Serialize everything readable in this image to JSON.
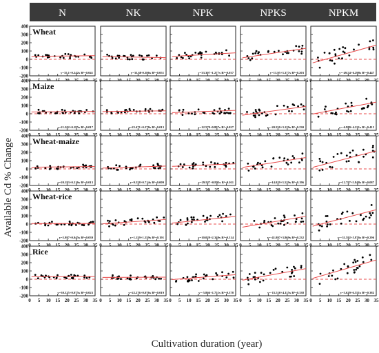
{
  "chart_data": {
    "type": "scatter",
    "ylabel": "Available Cd % Change",
    "xlabel": "Cultivation duration (year)",
    "columns": [
      "N",
      "NK",
      "NPK",
      "NPKS",
      "NPKM"
    ],
    "rows": [
      "Wheat",
      "Maize",
      "Wheat-maize",
      "Wheat-rice",
      "Rice"
    ],
    "xlim": [
      0,
      35
    ],
    "xticks": [
      0,
      5,
      10,
      15,
      20,
      25,
      30,
      35
    ],
    "ylim": [
      -200,
      400
    ],
    "yticks": [
      -200,
      -100,
      0,
      100,
      200,
      300,
      400
    ],
    "zero_line": "dashed, red",
    "colors": {
      "points": "#000000",
      "fit": "#e84a4a",
      "header_bg": "#3a3a3a",
      "header_text": "#ffffff"
    },
    "panels": [
      {
        "row": "Wheat",
        "column": "N",
        "equation": "y=35.1+0.242x R²=0.041",
        "intercept": 35.1,
        "slope": 0.242
      },
      {
        "row": "Wheat",
        "column": "NK",
        "equation": "y=33.68-0.386x R²=0.051",
        "intercept": 33.68,
        "slope": -0.386
      },
      {
        "row": "Wheat",
        "column": "NPK",
        "equation": "y=33.307+1.277x R²=0.037",
        "intercept": 33.307,
        "slope": 1.277
      },
      {
        "row": "Wheat",
        "column": "NPKS",
        "equation": "y=13.95+3.377x R²=0.203",
        "intercept": 13.95,
        "slope": 3.377
      },
      {
        "row": "Wheat",
        "column": "NPKM",
        "equation": "y=-49.54+6.298x R²=0.447",
        "intercept": -49.54,
        "slope": 6.298
      },
      {
        "row": "Maize",
        "column": "N",
        "equation": "y=21.202+0.185x R²=0.017",
        "intercept": 21.202,
        "slope": 0.185
      },
      {
        "row": "Maize",
        "column": "NK",
        "equation": "y=25.471+0.278x R²=0.013",
        "intercept": 25.471,
        "slope": 0.278
      },
      {
        "row": "Maize",
        "column": "NPK",
        "equation": "y=12.570+0.807x R²=0.027",
        "intercept": 12.57,
        "slope": 0.807
      },
      {
        "row": "Maize",
        "column": "NPKS",
        "equation": "y=-20.550+3.129x R²=0.230",
        "intercept": -20.55,
        "slope": 3.129
      },
      {
        "row": "Maize",
        "column": "NPKM",
        "equation": "y=-6.980+4.221x R²=0.415",
        "intercept": -6.98,
        "slope": 4.221
      },
      {
        "row": "Wheat-maize",
        "column": "N",
        "equation": "y=20.193+0.216x R²=0.013",
        "intercept": 20.193,
        "slope": 0.216
      },
      {
        "row": "Wheat-maize",
        "column": "NK",
        "equation": "y=9.558+0.714x R²=0.009",
        "intercept": 9.558,
        "slope": 0.714
      },
      {
        "row": "Wheat-maize",
        "column": "NPK",
        "equation": "y=29.927+0.895x R²=0.011",
        "intercept": 29.927,
        "slope": 0.895
      },
      {
        "row": "Wheat-maize",
        "column": "NPKS",
        "equation": "y=14.029+3.529x R²=0.196",
        "intercept": 14.029,
        "slope": 3.529
      },
      {
        "row": "Wheat-maize",
        "column": "NPKM",
        "equation": "y=12.797+5.848x R²=0.087",
        "intercept": 12.797,
        "slope": 5.848
      },
      {
        "row": "Wheat-rice",
        "column": "N",
        "equation": "y=5.997+0.045x R²=0.039",
        "intercept": 5.997,
        "slope": 0.045
      },
      {
        "row": "Wheat-rice",
        "column": "NK",
        "equation": "y=1.159+1.559x R²=0.191",
        "intercept": 1.159,
        "slope": 1.559
      },
      {
        "row": "Wheat-rice",
        "column": "NPK",
        "equation": "y=10.029+2.349x R²=0.314",
        "intercept": 10.029,
        "slope": 2.349
      },
      {
        "row": "Wheat-rice",
        "column": "NPKS",
        "equation": "y=-41.097+3.869x R²=0.232",
        "intercept": -41.097,
        "slope": 3.869
      },
      {
        "row": "Wheat-rice",
        "column": "NPKM",
        "equation": "y=-31.592+5.876x R²=0.296",
        "intercept": -31.592,
        "slope": 5.876
      },
      {
        "row": "Rice",
        "column": "N",
        "equation": "y=30.325+0.075x R²=0.023",
        "intercept": 30.325,
        "slope": 0.075
      },
      {
        "row": "Rice",
        "column": "NK",
        "equation": "y=22.276+0.076x R²=0.019",
        "intercept": 22.276,
        "slope": 0.076
      },
      {
        "row": "Rice",
        "column": "NPK",
        "equation": "y=-5.866+1.751x R²=0.378",
        "intercept": -5.866,
        "slope": 1.751
      },
      {
        "row": "Rice",
        "column": "NPKS",
        "equation": "y=-15.510+4.115x R²=0.338",
        "intercept": -15.51,
        "slope": 4.115
      },
      {
        "row": "Rice",
        "column": "NPKM",
        "equation": "y=3.629+6.551x R²=0.382",
        "intercept": 3.629,
        "slope": 6.551
      }
    ]
  }
}
